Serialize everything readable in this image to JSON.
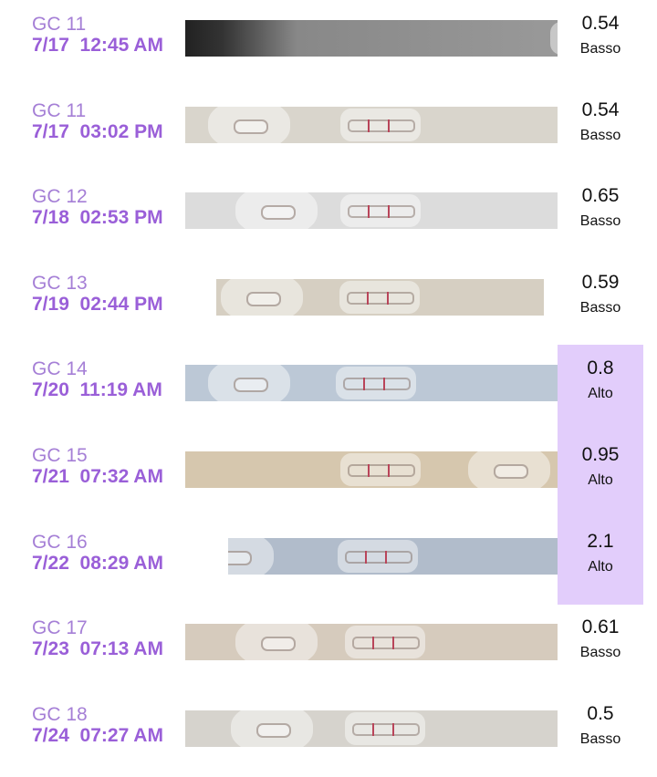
{
  "accent_color": "#9a5fd8",
  "high_highlight_color": "#e2cdfb",
  "tests": [
    {
      "label": "GC 11",
      "date": "7/17  12:45 AM",
      "value": "0.54",
      "level": "Basso",
      "high": false,
      "strip_color": "#8f9090",
      "dark": true
    },
    {
      "label": "GC 11",
      "date": "7/17  03:02 PM",
      "value": "0.54",
      "level": "Basso",
      "high": false,
      "strip_color": "#d9d5cc"
    },
    {
      "label": "GC 12",
      "date": "7/18  02:53 PM",
      "value": "0.65",
      "level": "Basso",
      "high": false,
      "strip_color": "#dcdcdc"
    },
    {
      "label": "GC 13",
      "date": "7/19  02:44 PM",
      "value": "0.59",
      "level": "Basso",
      "high": false,
      "strip_color": "#d6cfc2"
    },
    {
      "label": "GC 14",
      "date": "7/20  11:19 AM",
      "value": "0.8",
      "level": "Alto",
      "high": true,
      "strip_color": "#bcc8d6"
    },
    {
      "label": "GC 15",
      "date": "7/21  07:32 AM",
      "value": "0.95",
      "level": "Alto",
      "high": true,
      "strip_color": "#d6c7ae"
    },
    {
      "label": "GC 16",
      "date": "7/22  08:29 AM",
      "value": "2.1",
      "level": "Alto",
      "high": true,
      "strip_color": "#b1bccb"
    },
    {
      "label": "GC 17",
      "date": "7/23  07:13 AM",
      "value": "0.61",
      "level": "Basso",
      "high": false,
      "strip_color": "#d6cbbd"
    },
    {
      "label": "GC 18",
      "date": "7/24  07:27 AM",
      "value": "0.5",
      "level": "Basso",
      "high": false,
      "strip_color": "#d6d3cd"
    }
  ]
}
